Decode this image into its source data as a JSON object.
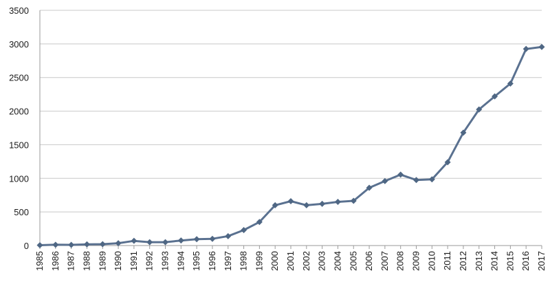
{
  "chart_data": {
    "type": "line",
    "title": "",
    "xlabel": "",
    "ylabel": "",
    "ylim": [
      0,
      3500
    ],
    "yticks": [
      0,
      500,
      1000,
      1500,
      2000,
      2500,
      3000,
      3500
    ],
    "grid": true,
    "legend": "none",
    "series_color": "#5a7190",
    "marker_color": "#4f6784",
    "categories": [
      "1985",
      "1986",
      "1987",
      "1988",
      "1989",
      "1990",
      "1991",
      "1992",
      "1993",
      "1994",
      "1995",
      "1996",
      "1997",
      "1998",
      "1999",
      "2000",
      "2001",
      "2002",
      "2003",
      "2004",
      "2005",
      "2006",
      "2007",
      "2008",
      "2009",
      "2010",
      "2011",
      "2012",
      "2013",
      "2014",
      "2015",
      "2016",
      "2017"
    ],
    "series": [
      {
        "values": [
          5,
          12,
          10,
          18,
          20,
          35,
          70,
          50,
          50,
          75,
          95,
          100,
          140,
          230,
          350,
          600,
          660,
          600,
          620,
          650,
          665,
          860,
          960,
          1055,
          975,
          985,
          1240,
          1680,
          2025,
          2220,
          2410,
          2925,
          2955
        ]
      }
    ]
  }
}
